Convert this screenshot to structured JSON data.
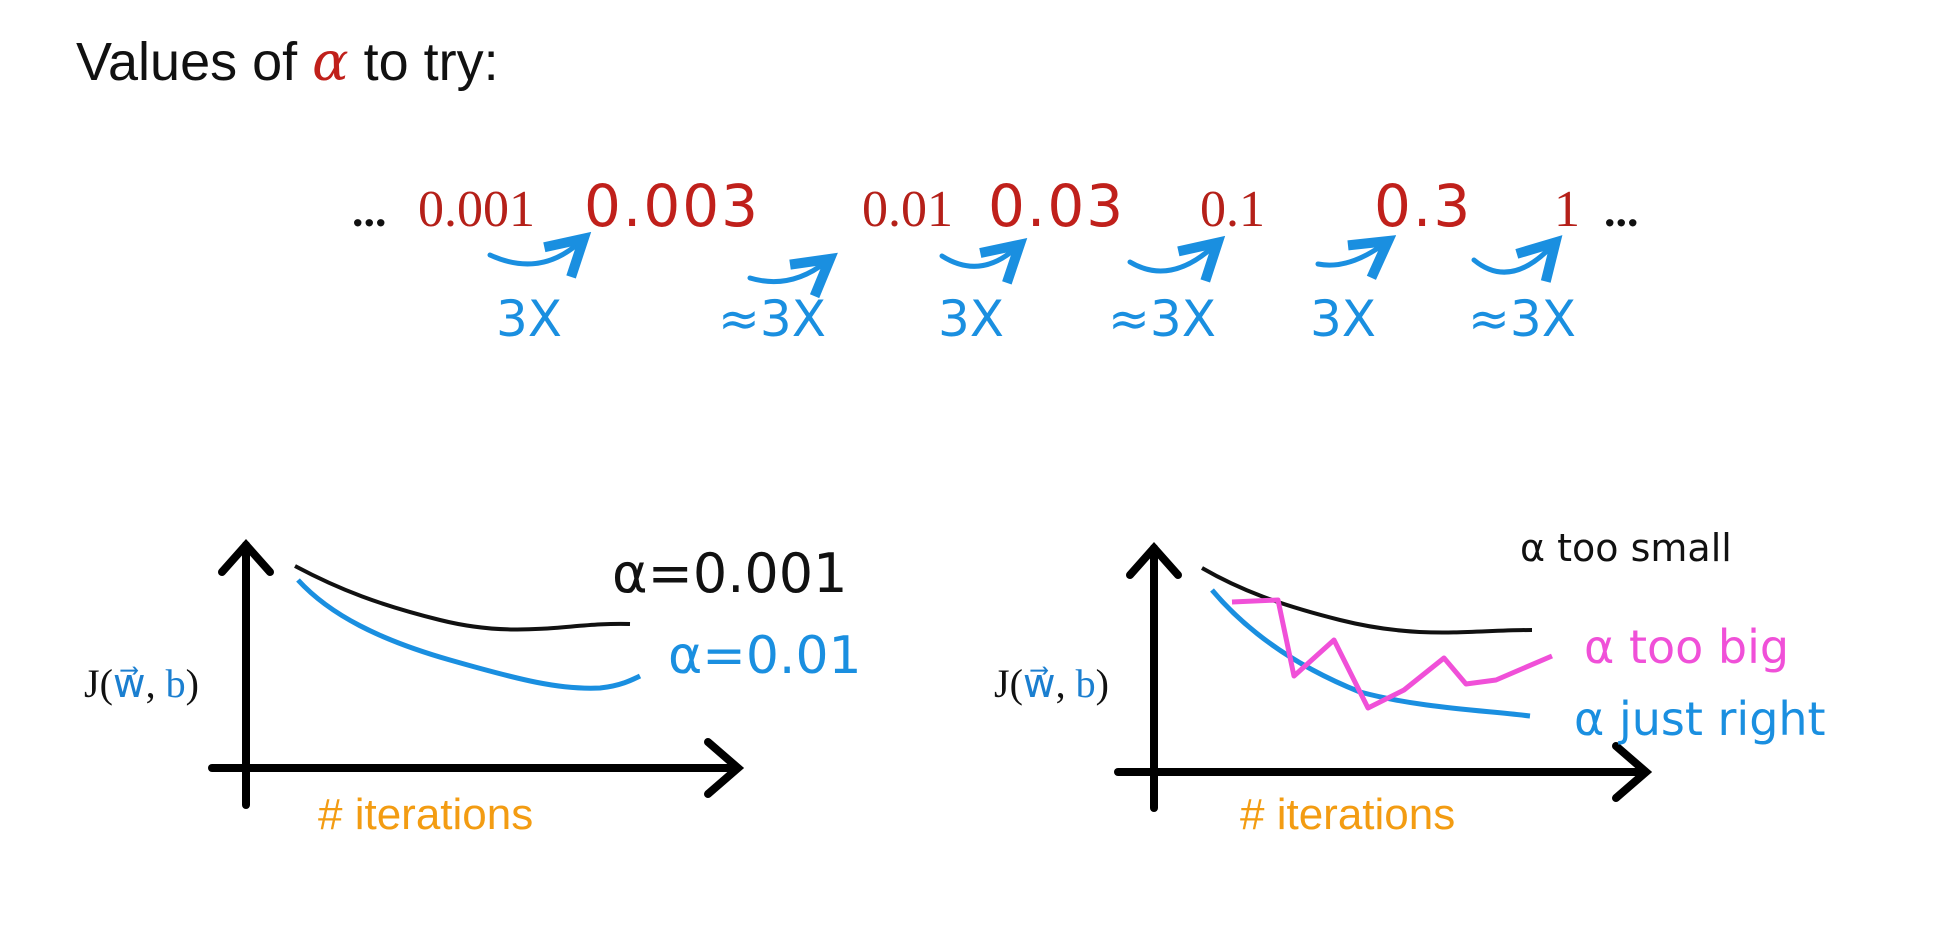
{
  "title": {
    "prefix": "Values of ",
    "alpha": "α",
    "suffix": " to try:"
  },
  "values_row": {
    "leading_dots": "...",
    "trailing_dots": "...",
    "values": [
      "0.001",
      "0.003",
      "0.01",
      "0.03",
      "0.1",
      "0.3",
      "1"
    ],
    "multipliers": [
      "3X",
      "≈3X",
      "3X",
      "≈3X",
      "3X",
      "≈3X"
    ]
  },
  "left_plot": {
    "ylabel": {
      "j": "J(",
      "w": "w⃗",
      "comma": ", ",
      "b": "b",
      "close": ")"
    },
    "xlabel": "# iterations",
    "curve_labels": [
      "α=0.001",
      "α=0.01"
    ]
  },
  "right_plot": {
    "ylabel": {
      "j": "J(",
      "w": "w⃗",
      "comma": ", ",
      "b": "b",
      "close": ")"
    },
    "xlabel": "# iterations",
    "curve_labels": [
      "α too small",
      "α too big",
      "α just right"
    ]
  },
  "colors": {
    "title_text": "#111111",
    "alpha_red": "#c0201b",
    "multiplier_blue": "#1a8fe0",
    "axis_black": "#000000",
    "curve_blue": "#1a8fe0",
    "curve_pink": "#f050d8",
    "iterations_orange": "#f39c12"
  }
}
